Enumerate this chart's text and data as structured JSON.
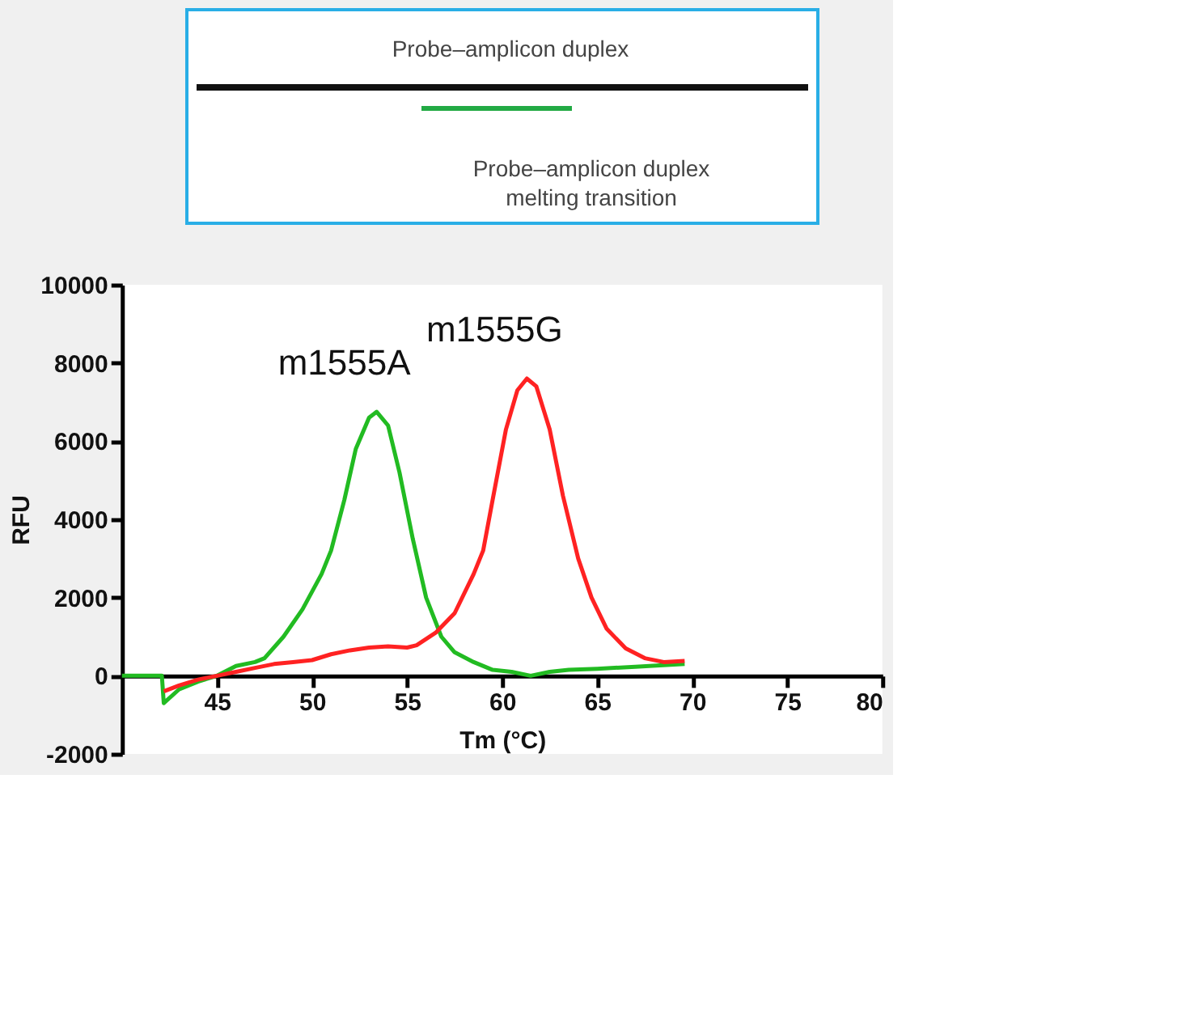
{
  "chart_data": {
    "type": "line",
    "xlabel": "Tm (°C)",
    "ylabel": "RFU",
    "annotations": [
      "Probe–amplicon duplex",
      "Probe–amplicon duplex\nmelting transition"
    ],
    "xlim": [
      40,
      80
    ],
    "xticks": [
      45,
      50,
      55,
      60,
      65,
      70,
      75,
      80
    ],
    "ylim": [
      -2000,
      10000
    ],
    "yticks": [
      -2000,
      0,
      2000,
      4000,
      6000,
      8000,
      10000
    ],
    "grid": false,
    "legend": false,
    "marker": "none",
    "line_style": "solid",
    "series": [
      {
        "name": "m1555A",
        "color": "#22bb22",
        "x": [
          40,
          42.1,
          42.2,
          43,
          44,
          45,
          46,
          47,
          47.5,
          48.5,
          49.5,
          50.5,
          51,
          51.7,
          52.3,
          53,
          53.4,
          54,
          54.6,
          55.3,
          56,
          56.8,
          57.5,
          58.5,
          59.5,
          60.5,
          61.5,
          62.5,
          63.5,
          65,
          67,
          69.6
        ],
        "values": [
          0,
          0,
          -700,
          -350,
          -150,
          0,
          250,
          350,
          450,
          1000,
          1700,
          2600,
          3200,
          4500,
          5800,
          6600,
          6750,
          6400,
          5200,
          3500,
          2000,
          1000,
          600,
          350,
          150,
          100,
          0,
          100,
          150,
          180,
          230,
          300
        ]
      },
      {
        "name": "m1555G",
        "color": "#ff2222",
        "x": [
          42.2,
          43,
          44,
          45,
          46,
          47,
          48,
          49,
          50,
          51,
          52,
          53,
          54,
          55,
          55.5,
          56.5,
          57.5,
          58.5,
          59,
          59.5,
          60.2,
          60.8,
          61.3,
          61.8,
          62.5,
          63.2,
          64,
          64.7,
          65.5,
          66.5,
          67.5,
          68.5,
          69.6
        ],
        "values": [
          -400,
          -250,
          -100,
          0,
          100,
          200,
          300,
          350,
          400,
          550,
          650,
          720,
          750,
          720,
          780,
          1100,
          1600,
          2600,
          3200,
          4500,
          6300,
          7300,
          7600,
          7400,
          6300,
          4600,
          3000,
          2000,
          1200,
          700,
          450,
          350,
          380
        ]
      }
    ]
  }
}
